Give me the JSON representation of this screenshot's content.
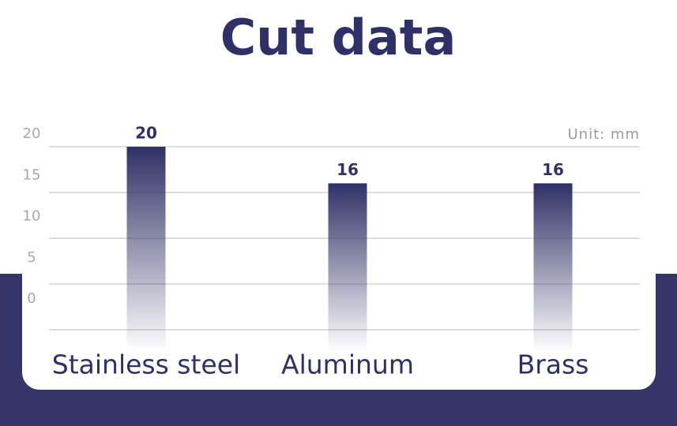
{
  "chart_data": {
    "type": "bar",
    "title": "Cut data",
    "annotation": "Unit: mm",
    "categories": [
      "Stainless steel",
      "Aluminum",
      "Brass"
    ],
    "values": [
      20,
      16,
      16
    ],
    "color": "#2f3066",
    "ylim": [
      0,
      20
    ],
    "yticks": [
      0,
      5,
      10,
      15,
      20
    ],
    "grid": true
  }
}
